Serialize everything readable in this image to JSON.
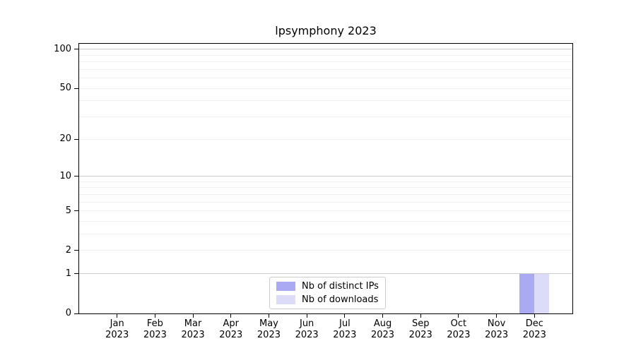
{
  "chart_data": {
    "type": "bar",
    "title": "lpsymphony 2023",
    "categories": [
      "Jan 2023",
      "Feb 2023",
      "Mar 2023",
      "Apr 2023",
      "May 2023",
      "Jun 2023",
      "Jul 2023",
      "Aug 2023",
      "Sep 2023",
      "Oct 2023",
      "Nov 2023",
      "Dec 2023"
    ],
    "series": [
      {
        "name": "Nb of distinct IPs",
        "color": "#aaaaf2",
        "values": [
          0,
          0,
          0,
          0,
          0,
          0,
          0,
          0,
          0,
          0,
          0,
          1
        ]
      },
      {
        "name": "Nb of downloads",
        "color": "#dcdcf8",
        "values": [
          0,
          0,
          0,
          0,
          0,
          0,
          0,
          0,
          0,
          0,
          0,
          1
        ]
      }
    ],
    "xlabel": "",
    "ylabel": "",
    "y_scale": "log1p",
    "ylim": [
      0,
      110
    ],
    "y_ticks": [
      0,
      1,
      2,
      5,
      10,
      20,
      50,
      100
    ],
    "y_grid_major": [
      1,
      10,
      100
    ],
    "y_grid_minor": [
      2,
      3,
      4,
      5,
      6,
      7,
      8,
      9,
      20,
      30,
      40,
      50,
      60,
      70,
      80,
      90
    ],
    "grid": true,
    "legend_position": "lower center"
  }
}
